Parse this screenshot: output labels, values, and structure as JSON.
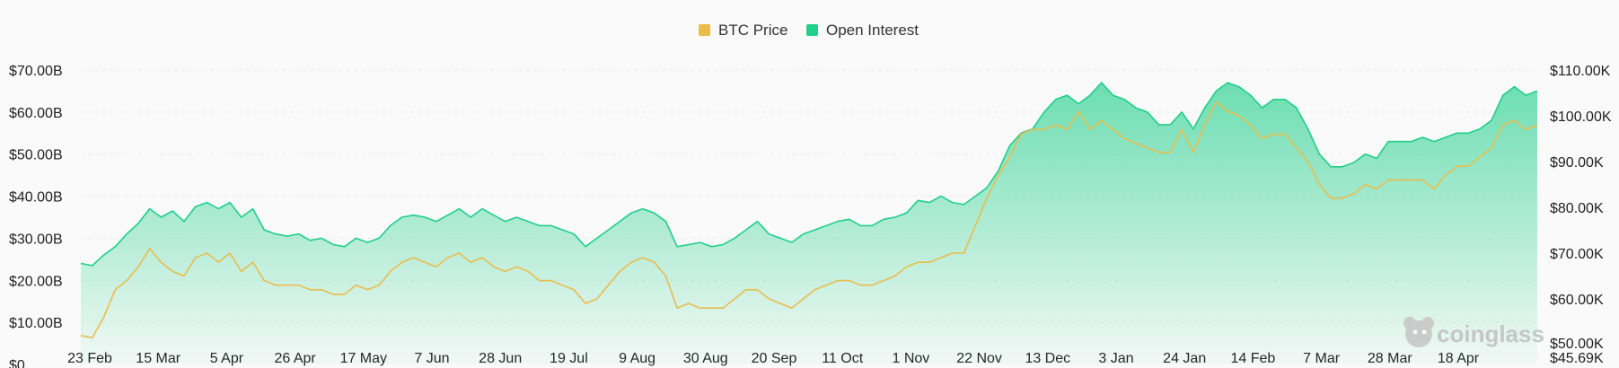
{
  "chart_data": {
    "type": "area",
    "legend_position": "top-center",
    "grid": true,
    "legend": [
      {
        "name": "BTC Price",
        "color": "#e9bd4c"
      },
      {
        "name": "Open Interest",
        "color": "#1fcf8a"
      }
    ],
    "x_ticks": [
      "23 Feb",
      "15 Mar",
      "5 Apr",
      "26 Apr",
      "17 May",
      "7 Jun",
      "28 Jun",
      "19 Jul",
      "9 Aug",
      "30 Aug",
      "20 Sep",
      "11 Oct",
      "1 Nov",
      "22 Nov",
      "13 Dec",
      "3 Jan",
      "24 Jan",
      "14 Feb",
      "7 Mar",
      "28 Mar",
      "18 Apr"
    ],
    "left_axis": {
      "ticks": [
        "$0",
        "$10.00B",
        "$20.00B",
        "$30.00B",
        "$40.00B",
        "$50.00B",
        "$60.00B",
        "$70.00B"
      ],
      "tick_values": [
        0,
        10,
        20,
        30,
        40,
        50,
        60,
        70
      ],
      "range": [
        0,
        70
      ],
      "unit": "B USD"
    },
    "right_axis": {
      "ticks": [
        "$45.69K",
        "$50.00K",
        "$60.00K",
        "$70.00K",
        "$80.00K",
        "$90.00K",
        "$100.00K",
        "$110.00K"
      ],
      "tick_values": [
        45.69,
        50,
        60,
        70,
        80,
        90,
        100,
        110
      ],
      "range": [
        45.69,
        110
      ],
      "unit": "K USD"
    },
    "series": [
      {
        "name": "Open Interest",
        "axis": "left",
        "color": "#1fcf8a",
        "values": [
          24,
          23.5,
          26,
          28,
          31,
          33.5,
          37,
          35,
          36.5,
          34,
          37.5,
          38.5,
          37,
          38.5,
          35,
          37,
          32,
          31,
          30.5,
          31,
          29.5,
          30,
          28.5,
          28,
          30,
          29,
          30,
          33,
          35,
          35.5,
          35,
          34,
          35.5,
          37,
          35,
          37,
          35.5,
          34,
          35,
          34,
          33,
          33,
          32,
          31,
          28,
          30,
          32,
          34,
          36,
          37,
          36,
          34,
          28,
          28.5,
          29,
          28,
          28.5,
          30,
          32,
          34,
          31,
          30,
          29,
          31,
          32,
          33,
          34,
          34.5,
          33,
          33,
          34.5,
          35,
          36,
          39,
          38.5,
          40,
          38.5,
          38,
          40,
          42,
          46,
          52,
          55,
          56,
          60,
          63,
          64,
          62,
          64,
          67,
          64,
          63,
          61,
          60,
          57,
          57,
          60,
          56,
          61,
          65,
          67,
          66,
          64,
          61,
          63,
          63,
          61,
          56,
          50,
          47,
          47,
          48,
          50,
          49,
          53,
          53,
          53,
          54,
          53,
          54,
          55,
          55,
          56,
          58,
          64,
          66,
          64,
          65
        ]
      },
      {
        "name": "BTC Price",
        "axis": "right",
        "color": "#e9bd4c",
        "values": [
          52,
          51.5,
          56,
          62,
          64,
          67,
          71,
          68,
          66,
          65,
          69,
          70,
          68,
          70,
          66,
          68,
          64,
          63,
          63,
          63,
          62,
          62,
          61,
          61,
          63,
          62,
          63,
          66,
          68,
          69,
          68,
          67,
          69,
          70,
          68,
          69,
          67,
          66,
          67,
          66,
          64,
          64,
          63,
          62,
          59,
          60,
          63,
          66,
          68,
          69,
          68,
          65,
          58,
          59,
          58,
          58,
          58,
          60,
          62,
          62,
          60,
          59,
          58,
          60,
          62,
          63,
          64,
          64,
          63,
          63,
          64,
          65,
          67,
          68,
          68,
          69,
          70,
          70,
          76,
          82,
          87,
          91,
          96,
          97,
          97,
          98,
          97,
          101,
          97,
          99,
          97,
          95,
          94,
          93,
          92,
          92,
          97,
          92,
          98,
          103,
          101,
          100,
          98,
          95,
          96,
          96,
          93,
          90,
          85,
          82,
          82,
          83,
          85,
          84,
          86,
          86,
          86,
          86,
          84,
          87,
          89,
          89,
          91,
          93,
          98,
          99,
          97,
          98
        ]
      }
    ],
    "watermark": "coinglass"
  }
}
